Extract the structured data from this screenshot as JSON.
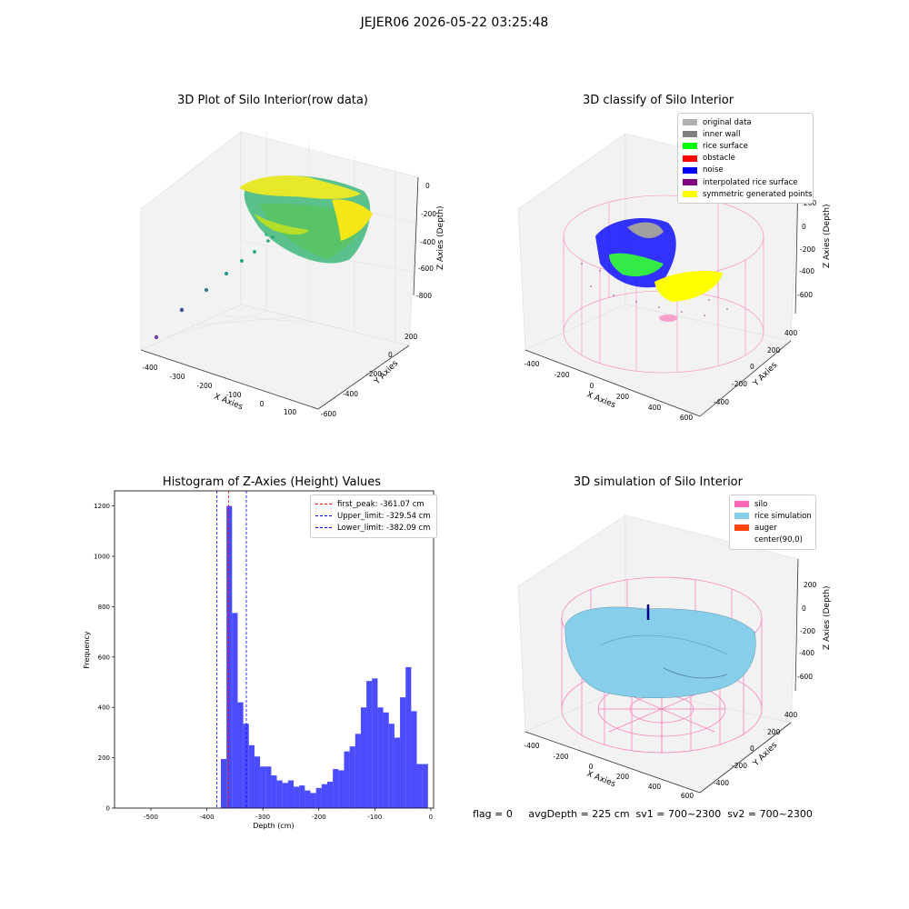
{
  "suptitle": "JEJER06 2026-05-22 03:25:48",
  "panels": {
    "raw": {
      "title": "3D Plot of Silo Interior(row data)",
      "xlabel": "X Axies",
      "ylabel": "Y Axies",
      "zlabel": "Z Axies (Depth)",
      "xticks": [
        "-400",
        "-300",
        "-200",
        "-100",
        "0",
        "100"
      ],
      "yticks": [
        "200",
        "0",
        "-200",
        "-400",
        "-600"
      ],
      "zticks": [
        "0",
        "-200",
        "-400",
        "-600",
        "-800"
      ]
    },
    "classify": {
      "title": "3D classify of Silo Interior",
      "xlabel": "X Axies",
      "ylabel": "Y Axies",
      "zlabel": "Z Axies (Depth)",
      "xticks": [
        "-400",
        "-200",
        "0",
        "200",
        "400",
        "600"
      ],
      "yticks": [
        "400",
        "200",
        "0",
        "-200",
        "-400"
      ],
      "zticks": [
        "200",
        "0",
        "-200",
        "-400",
        "-600"
      ],
      "legend": [
        {
          "label": "original data",
          "color": "#b0b0b0"
        },
        {
          "label": "inner wall",
          "color": "#808080"
        },
        {
          "label": "rice surface",
          "color": "#00ff00"
        },
        {
          "label": "obstacle",
          "color": "#ff0000"
        },
        {
          "label": "noise",
          "color": "#0000ff"
        },
        {
          "label": "interpolated rice surface",
          "color": "#800080"
        },
        {
          "label": "symmetric generated points",
          "color": "#ffff00"
        }
      ]
    },
    "simulation": {
      "title": "3D simulation of Silo Interior",
      "xlabel": "X Axies",
      "ylabel": "Y Axies",
      "zlabel": "Z Axies (Depth)",
      "xticks": [
        "-400",
        "-200",
        "0",
        "200",
        "400",
        "600"
      ],
      "yticks": [
        "400",
        "200",
        "0",
        "-200",
        "-400"
      ],
      "zticks": [
        "200",
        "0",
        "-200",
        "-400",
        "-600"
      ],
      "legend": [
        {
          "label": "silo",
          "color": "#ff69b4"
        },
        {
          "label": "rice simulation",
          "color": "#87ceeb"
        },
        {
          "label": "auger",
          "color": "#ff4500"
        },
        {
          "label": "center(90,0)",
          "color": ""
        }
      ]
    }
  },
  "bottom_text": "flag = 0     avgDepth = 225 cm  sv1 = 700~2300  sv2 = 700~2300",
  "chart_data": {
    "type": "bar",
    "title": "Histogram of Z-Axies (Height) Values",
    "xlabel": "Depth (cm)",
    "ylabel": "Frequency",
    "xlim": [
      -565,
      5
    ],
    "ylim": [
      0,
      1260
    ],
    "xticks": [
      -500,
      -400,
      -300,
      -200,
      -100,
      0
    ],
    "yticks": [
      0,
      200,
      400,
      600,
      800,
      1000,
      1200
    ],
    "bar_color": "#0000ff",
    "bin_width": 10,
    "bin_left_edges": [
      -375,
      -365,
      -355,
      -345,
      -335,
      -325,
      -315,
      -305,
      -295,
      -285,
      -275,
      -265,
      -255,
      -245,
      -235,
      -225,
      -215,
      -205,
      -195,
      -185,
      -175,
      -165,
      -155,
      -145,
      -135,
      -125,
      -115,
      -105,
      -95,
      -85,
      -75,
      -65,
      -55,
      -45,
      -35,
      -25,
      -15
    ],
    "values": [
      195,
      1200,
      775,
      420,
      335,
      250,
      205,
      165,
      165,
      130,
      110,
      100,
      110,
      85,
      90,
      70,
      60,
      80,
      95,
      105,
      155,
      150,
      225,
      245,
      295,
      400,
      505,
      515,
      400,
      380,
      335,
      280,
      440,
      560,
      385,
      175,
      175
    ],
    "lines": [
      {
        "label": "first_peak: -361.07 cm",
        "x": -361.07,
        "color": "#ff0000"
      },
      {
        "label": "Upper_limit: -329.54 cm",
        "x": -329.54,
        "color": "#0000ff"
      },
      {
        "label": "Lower_limit: -382.09 cm",
        "x": -382.09,
        "color": "#0000ff"
      }
    ],
    "legend_position": "upper right"
  }
}
